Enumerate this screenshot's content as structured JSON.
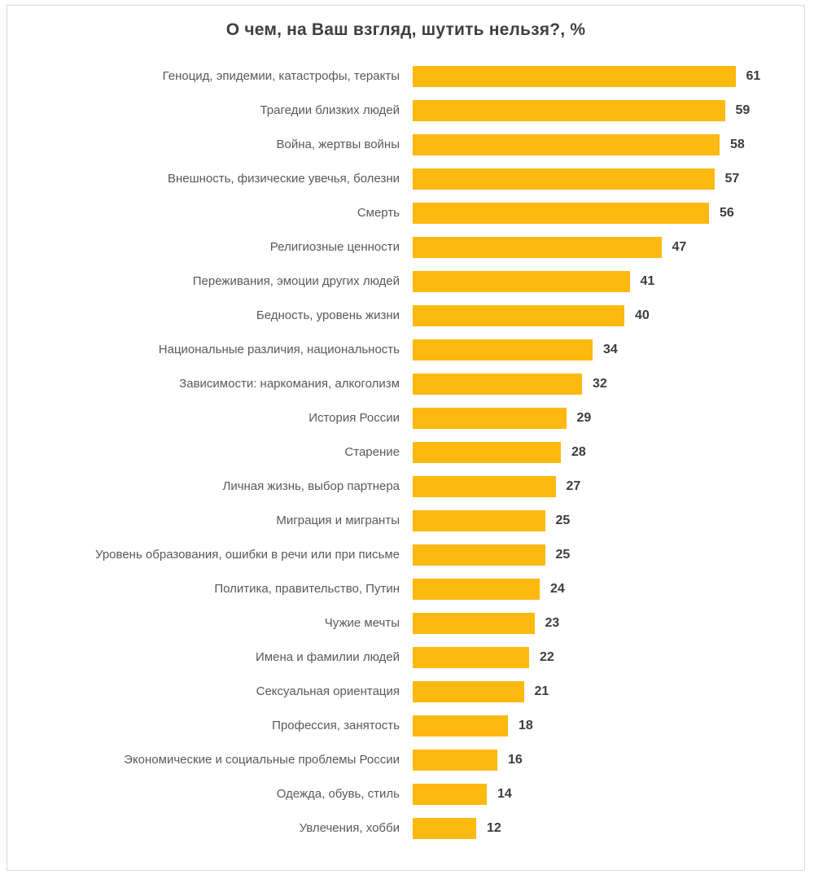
{
  "chart_data": {
    "type": "bar",
    "orientation": "horizontal",
    "title": "О чем, на Ваш взгляд, шутить нельзя?, %",
    "unit": "%",
    "bar_color": "#fdb910",
    "grid": false,
    "legend": false,
    "value_labels": true,
    "xlim": [
      0,
      63
    ],
    "categories": [
      "Геноцид, эпидемии, катастрофы, теракты",
      "Трагедии близких людей",
      "Война, жертвы войны",
      "Внешность, физические увечья, болезни",
      "Смерть",
      "Религиозные ценности",
      "Переживания, эмоции других людей",
      "Бедность, уровень жизни",
      "Национальные различия, национальность",
      "Зависимости: наркомания, алкоголизм",
      "История России",
      "Старение",
      "Личная жизнь, выбор партнера",
      "Миграция и мигранты",
      "Уровень образования, ошибки в речи или при письме",
      "Политика, правительство, Путин",
      "Чужие мечты",
      "Имена и фамилии людей",
      "Сексуальная ориентация",
      "Профессия, занятость",
      "Экономические и социальные проблемы России",
      "Одежда, обувь, стиль",
      "Увлечения, хобби"
    ],
    "values": [
      61,
      59,
      58,
      57,
      56,
      47,
      41,
      40,
      34,
      32,
      29,
      28,
      27,
      25,
      25,
      24,
      23,
      22,
      21,
      18,
      16,
      14,
      12
    ]
  }
}
